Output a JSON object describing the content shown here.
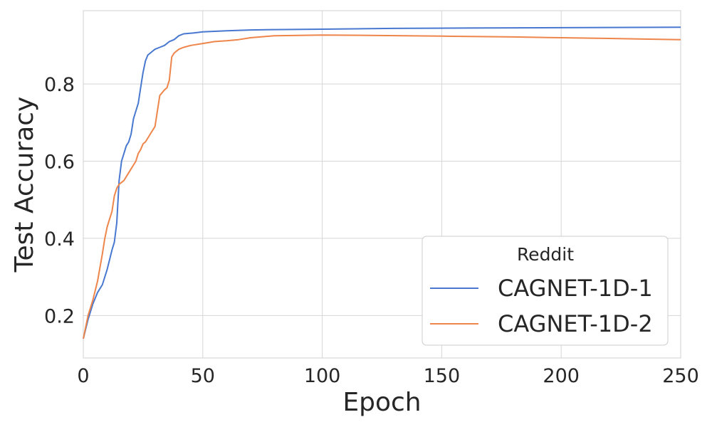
{
  "chart_data": {
    "type": "line",
    "xlabel": "Epoch",
    "ylabel": "Test Accuracy",
    "xlim": [
      0,
      250
    ],
    "ylim": [
      0.09,
      0.99
    ],
    "xticks": [
      "0",
      "50",
      "100",
      "150",
      "200",
      "250"
    ],
    "xtick_values": [
      0,
      50,
      100,
      150,
      200,
      250
    ],
    "yticks": [
      "0.2",
      "0.4",
      "0.6",
      "0.8"
    ],
    "ytick_values": [
      0.2,
      0.4,
      0.6,
      0.8
    ],
    "grid": true,
    "legend": {
      "title": "Reddit",
      "position": "lower-right"
    },
    "series": [
      {
        "name": "CAGNET-1D-1",
        "color": "#4878d0",
        "x": [
          0,
          2,
          4,
          6,
          8,
          10,
          12,
          13,
          14,
          15,
          16,
          17,
          18,
          19,
          20,
          21,
          22,
          23,
          24,
          25,
          26,
          27,
          28,
          29,
          30,
          32,
          34,
          36,
          38,
          40,
          42,
          46,
          50,
          60,
          70,
          80,
          100,
          130,
          160,
          200,
          250
        ],
        "y": [
          0.14,
          0.19,
          0.23,
          0.26,
          0.28,
          0.32,
          0.37,
          0.39,
          0.44,
          0.55,
          0.6,
          0.62,
          0.64,
          0.65,
          0.67,
          0.71,
          0.73,
          0.75,
          0.79,
          0.83,
          0.86,
          0.875,
          0.88,
          0.885,
          0.89,
          0.895,
          0.9,
          0.91,
          0.915,
          0.925,
          0.93,
          0.932,
          0.935,
          0.938,
          0.94,
          0.941,
          0.942,
          0.944,
          0.945,
          0.946,
          0.947
        ]
      },
      {
        "name": "CAGNET-1D-2",
        "color": "#ee854a",
        "x": [
          0,
          2,
          4,
          6,
          8,
          9,
          10,
          11,
          12,
          13,
          14,
          15,
          16,
          17,
          18,
          19,
          20,
          21,
          22,
          23,
          24,
          25,
          26,
          28,
          30,
          32,
          34,
          35,
          36,
          37,
          38,
          40,
          42,
          45,
          50,
          55,
          60,
          65,
          70,
          80,
          100,
          120,
          150,
          180,
          200,
          220,
          250
        ],
        "y": [
          0.14,
          0.2,
          0.24,
          0.29,
          0.36,
          0.4,
          0.43,
          0.45,
          0.47,
          0.51,
          0.53,
          0.54,
          0.545,
          0.55,
          0.56,
          0.57,
          0.58,
          0.59,
          0.6,
          0.62,
          0.63,
          0.645,
          0.65,
          0.67,
          0.69,
          0.77,
          0.785,
          0.79,
          0.81,
          0.87,
          0.88,
          0.89,
          0.895,
          0.9,
          0.905,
          0.91,
          0.912,
          0.915,
          0.92,
          0.925,
          0.927,
          0.926,
          0.924,
          0.922,
          0.92,
          0.918,
          0.915
        ]
      }
    ]
  }
}
